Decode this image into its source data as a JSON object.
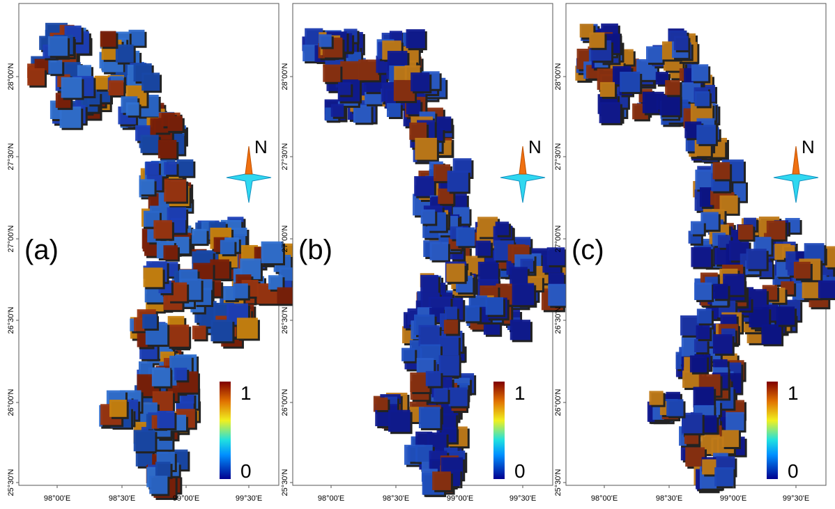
{
  "panels": [
    {
      "label": "(a)"
    },
    {
      "label": "(b)"
    },
    {
      "label": "(c)"
    }
  ],
  "lat_ticks": [
    "28°00'N",
    "27°30'N",
    "27°00'N",
    "26°30'N",
    "26°00'N",
    "25°30'N"
  ],
  "lon_ticks": [
    "98°00'E",
    "98°30'E",
    "99°00'E",
    "99°30'E"
  ],
  "colorbar": {
    "ticks": [
      0,
      1
    ]
  },
  "north": "N"
}
